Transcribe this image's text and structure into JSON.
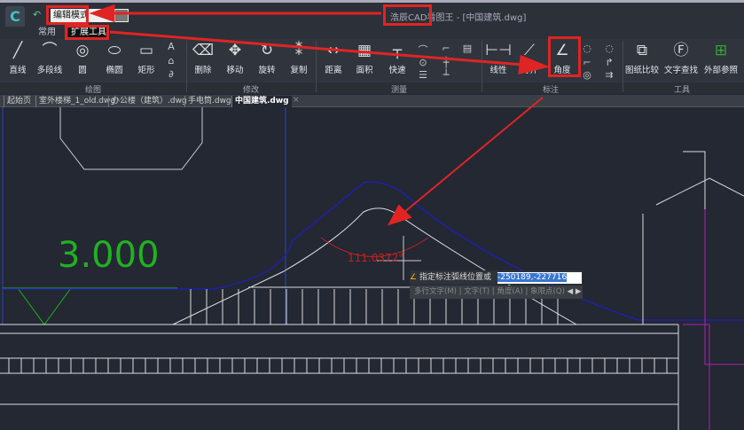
{
  "titlebar": {
    "logo": "C",
    "undo_icon": "undo-icon",
    "mode_value": "编辑模式",
    "title_app": "浩辰CAD看图王",
    "title_file": " - [中国建筑.dwg]"
  },
  "ribbon_tabs": [
    "常用",
    "扩展工具"
  ],
  "tools": {
    "draw": [
      {
        "label": "直线",
        "icon": "╱"
      },
      {
        "label": "多段线",
        "icon": "⌒"
      },
      {
        "label": "圆",
        "icon": "◎"
      },
      {
        "label": "椭圆",
        "icon": "⬭"
      },
      {
        "label": "矩形",
        "icon": "▭"
      }
    ],
    "draw_small": [
      "A",
      "⌂",
      "∂"
    ],
    "modify": [
      {
        "label": "删除",
        "icon": "⌫"
      },
      {
        "label": "移动",
        "icon": "✥"
      },
      {
        "label": "旋转",
        "icon": "↻"
      },
      {
        "label": "复制",
        "icon": "⁑"
      }
    ],
    "measure": [
      {
        "label": "距离",
        "icon": "↔"
      },
      {
        "label": "面积",
        "icon": "▦"
      },
      {
        "label": "快速",
        "icon": "┬"
      }
    ],
    "dim": [
      {
        "label": "线性",
        "icon": "⊢⊣"
      },
      {
        "label": "对齐",
        "icon": "⟋"
      },
      {
        "label": "角度",
        "icon": "∠"
      }
    ],
    "tools": [
      {
        "label": "图纸比较",
        "icon": "⧉"
      },
      {
        "label": "文字查找",
        "icon": "Ⓕ"
      },
      {
        "label": "外部参照",
        "icon": "⊞"
      }
    ]
  },
  "groups": [
    "绘图",
    "修改",
    "测量",
    "标注",
    "工具"
  ],
  "doc_tabs": [
    "起始页",
    "室外楼梯_1_old.dwg",
    "办公楼（建筑）.dwg",
    "手电筒.dwg",
    "中国建筑.dwg"
  ],
  "active_tab": "中国建筑.dwg",
  "canvas": {
    "level_text": "3.000",
    "angle_text": "111.0372°"
  },
  "command": {
    "prompt": "指定标注弧线位置或",
    "coord_value": "-250189,-227716",
    "options": [
      "多行文字(M)",
      "文字(T)",
      "角度(A)",
      "象限点(Q)"
    ]
  },
  "colors": {
    "annotation": "#e02424",
    "canvas": "#232833",
    "green": "#22b022",
    "blue": "#2020a8"
  }
}
